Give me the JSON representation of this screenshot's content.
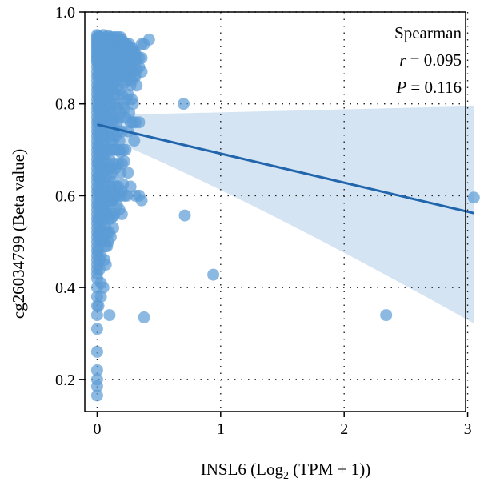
{
  "chart_data": {
    "type": "scatter",
    "title": "",
    "xlabel": "INSL6 (Log",
    "xlabel_sub": "2",
    "xlabel_end": " (TPM + 1))",
    "ylabel": "cg26034799 (Beta value)",
    "xlim": [
      -0.1,
      3.1
    ],
    "ylim": [
      0.13,
      1.0
    ],
    "x_ticks": [
      0,
      1,
      2,
      3
    ],
    "y_ticks": [
      0.2,
      0.4,
      0.6,
      0.8,
      1.0
    ],
    "x_tick_labels": [
      "0",
      "1",
      "2",
      "3"
    ],
    "y_tick_labels": [
      "0.2",
      "0.4",
      "0.6",
      "0.8",
      "1.0"
    ],
    "grid": true,
    "annotation": {
      "method": "Spearman",
      "r_symbol": "r",
      "r_value": " = 0.095",
      "p_symbol": "P",
      "p_value": " = 0.116"
    },
    "point_color": "#5b9bd5",
    "line_color": "#2166ac",
    "band_color": "#c6dbef",
    "regression": {
      "x": [
        0,
        3.05
      ],
      "y": [
        0.755,
        0.562
      ],
      "ci_lower": [
        0.735,
        0.322
      ],
      "ci_upper": [
        0.775,
        0.795
      ]
    },
    "points": [
      [
        0.0,
        0.95
      ],
      [
        0.0,
        0.945
      ],
      [
        0.0,
        0.94
      ],
      [
        0.0,
        0.935
      ],
      [
        0.0,
        0.93
      ],
      [
        0.0,
        0.925
      ],
      [
        0.0,
        0.92
      ],
      [
        0.0,
        0.915
      ],
      [
        0.0,
        0.91
      ],
      [
        0.0,
        0.905
      ],
      [
        0.0,
        0.9
      ],
      [
        0.0,
        0.895
      ],
      [
        0.0,
        0.89
      ],
      [
        0.0,
        0.88
      ],
      [
        0.0,
        0.87
      ],
      [
        0.0,
        0.86
      ],
      [
        0.0,
        0.85
      ],
      [
        0.0,
        0.84
      ],
      [
        0.0,
        0.83
      ],
      [
        0.0,
        0.82
      ],
      [
        0.0,
        0.81
      ],
      [
        0.0,
        0.8
      ],
      [
        0.0,
        0.79
      ],
      [
        0.0,
        0.78
      ],
      [
        0.0,
        0.77
      ],
      [
        0.0,
        0.76
      ],
      [
        0.0,
        0.75
      ],
      [
        0.0,
        0.74
      ],
      [
        0.0,
        0.73
      ],
      [
        0.0,
        0.72
      ],
      [
        0.0,
        0.71
      ],
      [
        0.0,
        0.7
      ],
      [
        0.0,
        0.69
      ],
      [
        0.0,
        0.68
      ],
      [
        0.0,
        0.67
      ],
      [
        0.0,
        0.66
      ],
      [
        0.0,
        0.65
      ],
      [
        0.0,
        0.64
      ],
      [
        0.0,
        0.63
      ],
      [
        0.0,
        0.62
      ],
      [
        0.0,
        0.61
      ],
      [
        0.0,
        0.6
      ],
      [
        0.0,
        0.59
      ],
      [
        0.0,
        0.58
      ],
      [
        0.0,
        0.57
      ],
      [
        0.0,
        0.56
      ],
      [
        0.0,
        0.55
      ],
      [
        0.0,
        0.54
      ],
      [
        0.0,
        0.53
      ],
      [
        0.0,
        0.52
      ],
      [
        0.0,
        0.51
      ],
      [
        0.0,
        0.5
      ],
      [
        0.0,
        0.49
      ],
      [
        0.0,
        0.48
      ],
      [
        0.0,
        0.47
      ],
      [
        0.0,
        0.46
      ],
      [
        0.0,
        0.45
      ],
      [
        0.0,
        0.44
      ],
      [
        0.0,
        0.43
      ],
      [
        0.0,
        0.42
      ],
      [
        0.0,
        0.4
      ],
      [
        0.0,
        0.38
      ],
      [
        0.0,
        0.36
      ],
      [
        0.0,
        0.34
      ],
      [
        0.0,
        0.31
      ],
      [
        0.0,
        0.26
      ],
      [
        0.0,
        0.22
      ],
      [
        0.0,
        0.2
      ],
      [
        0.0,
        0.185
      ],
      [
        0.0,
        0.165
      ],
      [
        0.01,
        0.947
      ],
      [
        0.01,
        0.932
      ],
      [
        0.01,
        0.918
      ],
      [
        0.01,
        0.903
      ],
      [
        0.01,
        0.885
      ],
      [
        0.01,
        0.862
      ],
      [
        0.01,
        0.835
      ],
      [
        0.01,
        0.815
      ],
      [
        0.01,
        0.79
      ],
      [
        0.01,
        0.762
      ],
      [
        0.01,
        0.735
      ],
      [
        0.01,
        0.705
      ],
      [
        0.01,
        0.672
      ],
      [
        0.01,
        0.643
      ],
      [
        0.01,
        0.612
      ],
      [
        0.01,
        0.58
      ],
      [
        0.01,
        0.548
      ],
      [
        0.01,
        0.515
      ],
      [
        0.01,
        0.48
      ],
      [
        0.01,
        0.36
      ],
      [
        0.02,
        0.94
      ],
      [
        0.02,
        0.92
      ],
      [
        0.02,
        0.9
      ],
      [
        0.02,
        0.87
      ],
      [
        0.02,
        0.84
      ],
      [
        0.02,
        0.81
      ],
      [
        0.02,
        0.78
      ],
      [
        0.02,
        0.75
      ],
      [
        0.02,
        0.72
      ],
      [
        0.02,
        0.69
      ],
      [
        0.02,
        0.66
      ],
      [
        0.02,
        0.63
      ],
      [
        0.02,
        0.6
      ],
      [
        0.02,
        0.57
      ],
      [
        0.02,
        0.53
      ],
      [
        0.02,
        0.5
      ],
      [
        0.02,
        0.46
      ],
      [
        0.02,
        0.44
      ],
      [
        0.03,
        0.945
      ],
      [
        0.03,
        0.925
      ],
      [
        0.03,
        0.905
      ],
      [
        0.03,
        0.885
      ],
      [
        0.03,
        0.86
      ],
      [
        0.03,
        0.825
      ],
      [
        0.03,
        0.795
      ],
      [
        0.03,
        0.765
      ],
      [
        0.03,
        0.73
      ],
      [
        0.03,
        0.7
      ],
      [
        0.03,
        0.665
      ],
      [
        0.03,
        0.635
      ],
      [
        0.03,
        0.59
      ],
      [
        0.03,
        0.555
      ],
      [
        0.03,
        0.52
      ],
      [
        0.03,
        0.47
      ],
      [
        0.03,
        0.41
      ],
      [
        0.03,
        0.38
      ],
      [
        0.04,
        0.94
      ],
      [
        0.04,
        0.915
      ],
      [
        0.04,
        0.895
      ],
      [
        0.04,
        0.875
      ],
      [
        0.04,
        0.845
      ],
      [
        0.04,
        0.8
      ],
      [
        0.04,
        0.77
      ],
      [
        0.04,
        0.73
      ],
      [
        0.04,
        0.69
      ],
      [
        0.04,
        0.65
      ],
      [
        0.04,
        0.61
      ],
      [
        0.04,
        0.575
      ],
      [
        0.04,
        0.54
      ],
      [
        0.04,
        0.5
      ],
      [
        0.05,
        0.95
      ],
      [
        0.05,
        0.93
      ],
      [
        0.05,
        0.91
      ],
      [
        0.05,
        0.89
      ],
      [
        0.05,
        0.86
      ],
      [
        0.05,
        0.83
      ],
      [
        0.05,
        0.81
      ],
      [
        0.05,
        0.78
      ],
      [
        0.05,
        0.74
      ],
      [
        0.05,
        0.71
      ],
      [
        0.05,
        0.68
      ],
      [
        0.05,
        0.65
      ],
      [
        0.05,
        0.62
      ],
      [
        0.05,
        0.6
      ],
      [
        0.05,
        0.56
      ],
      [
        0.05,
        0.52
      ],
      [
        0.05,
        0.4
      ],
      [
        0.06,
        0.938
      ],
      [
        0.06,
        0.92
      ],
      [
        0.06,
        0.9
      ],
      [
        0.06,
        0.875
      ],
      [
        0.06,
        0.85
      ],
      [
        0.06,
        0.82
      ],
      [
        0.06,
        0.79
      ],
      [
        0.06,
        0.755
      ],
      [
        0.06,
        0.72
      ],
      [
        0.06,
        0.7
      ],
      [
        0.06,
        0.66
      ],
      [
        0.06,
        0.63
      ],
      [
        0.06,
        0.58
      ],
      [
        0.06,
        0.55
      ],
      [
        0.06,
        0.5
      ],
      [
        0.06,
        0.46
      ],
      [
        0.07,
        0.945
      ],
      [
        0.07,
        0.925
      ],
      [
        0.07,
        0.905
      ],
      [
        0.07,
        0.88
      ],
      [
        0.07,
        0.86
      ],
      [
        0.07,
        0.835
      ],
      [
        0.07,
        0.8
      ],
      [
        0.07,
        0.77
      ],
      [
        0.07,
        0.73
      ],
      [
        0.07,
        0.69
      ],
      [
        0.07,
        0.64
      ],
      [
        0.07,
        0.61
      ],
      [
        0.07,
        0.57
      ],
      [
        0.07,
        0.53
      ],
      [
        0.07,
        0.49
      ],
      [
        0.07,
        0.45
      ],
      [
        0.08,
        0.94
      ],
      [
        0.08,
        0.92
      ],
      [
        0.08,
        0.9
      ],
      [
        0.08,
        0.885
      ],
      [
        0.08,
        0.865
      ],
      [
        0.08,
        0.84
      ],
      [
        0.08,
        0.8
      ],
      [
        0.08,
        0.76
      ],
      [
        0.08,
        0.7
      ],
      [
        0.08,
        0.67
      ],
      [
        0.08,
        0.6
      ],
      [
        0.08,
        0.56
      ],
      [
        0.08,
        0.52
      ],
      [
        0.08,
        0.49
      ],
      [
        0.09,
        0.948
      ],
      [
        0.09,
        0.93
      ],
      [
        0.09,
        0.91
      ],
      [
        0.09,
        0.89
      ],
      [
        0.09,
        0.87
      ],
      [
        0.09,
        0.85
      ],
      [
        0.09,
        0.82
      ],
      [
        0.09,
        0.78
      ],
      [
        0.09,
        0.74
      ],
      [
        0.09,
        0.7
      ],
      [
        0.09,
        0.66
      ],
      [
        0.09,
        0.6
      ],
      [
        0.09,
        0.58
      ],
      [
        0.09,
        0.55
      ],
      [
        0.09,
        0.5
      ],
      [
        0.1,
        0.94
      ],
      [
        0.1,
        0.92
      ],
      [
        0.1,
        0.9
      ],
      [
        0.1,
        0.88
      ],
      [
        0.1,
        0.86
      ],
      [
        0.1,
        0.82
      ],
      [
        0.1,
        0.79
      ],
      [
        0.1,
        0.77
      ],
      [
        0.1,
        0.73
      ],
      [
        0.1,
        0.68
      ],
      [
        0.1,
        0.64
      ],
      [
        0.1,
        0.59
      ],
      [
        0.1,
        0.56
      ],
      [
        0.1,
        0.52
      ],
      [
        0.1,
        0.34
      ],
      [
        0.11,
        0.945
      ],
      [
        0.11,
        0.925
      ],
      [
        0.11,
        0.905
      ],
      [
        0.11,
        0.88
      ],
      [
        0.11,
        0.855
      ],
      [
        0.11,
        0.83
      ],
      [
        0.11,
        0.8
      ],
      [
        0.11,
        0.76
      ],
      [
        0.11,
        0.72
      ],
      [
        0.11,
        0.66
      ],
      [
        0.11,
        0.62
      ],
      [
        0.11,
        0.59
      ],
      [
        0.11,
        0.55
      ],
      [
        0.11,
        0.51
      ],
      [
        0.12,
        0.94
      ],
      [
        0.12,
        0.92
      ],
      [
        0.12,
        0.9
      ],
      [
        0.12,
        0.88
      ],
      [
        0.12,
        0.865
      ],
      [
        0.12,
        0.84
      ],
      [
        0.12,
        0.78
      ],
      [
        0.12,
        0.74
      ],
      [
        0.12,
        0.7
      ],
      [
        0.12,
        0.65
      ],
      [
        0.12,
        0.61
      ],
      [
        0.12,
        0.59
      ],
      [
        0.13,
        0.945
      ],
      [
        0.13,
        0.93
      ],
      [
        0.13,
        0.91
      ],
      [
        0.13,
        0.89
      ],
      [
        0.13,
        0.87
      ],
      [
        0.13,
        0.84
      ],
      [
        0.13,
        0.8
      ],
      [
        0.13,
        0.76
      ],
      [
        0.13,
        0.72
      ],
      [
        0.13,
        0.67
      ],
      [
        0.13,
        0.63
      ],
      [
        0.13,
        0.59
      ],
      [
        0.13,
        0.555
      ],
      [
        0.13,
        0.53
      ],
      [
        0.14,
        0.94
      ],
      [
        0.14,
        0.92
      ],
      [
        0.14,
        0.9
      ],
      [
        0.14,
        0.88
      ],
      [
        0.14,
        0.85
      ],
      [
        0.14,
        0.82
      ],
      [
        0.14,
        0.77
      ],
      [
        0.14,
        0.7
      ],
      [
        0.14,
        0.6
      ],
      [
        0.14,
        0.56
      ],
      [
        0.15,
        0.945
      ],
      [
        0.15,
        0.93
      ],
      [
        0.15,
        0.915
      ],
      [
        0.15,
        0.895
      ],
      [
        0.15,
        0.87
      ],
      [
        0.15,
        0.85
      ],
      [
        0.15,
        0.8
      ],
      [
        0.15,
        0.73
      ],
      [
        0.15,
        0.66
      ],
      [
        0.15,
        0.62
      ],
      [
        0.16,
        0.94
      ],
      [
        0.16,
        0.92
      ],
      [
        0.16,
        0.9
      ],
      [
        0.16,
        0.88
      ],
      [
        0.16,
        0.86
      ],
      [
        0.16,
        0.82
      ],
      [
        0.16,
        0.76
      ],
      [
        0.16,
        0.7
      ],
      [
        0.16,
        0.6
      ],
      [
        0.16,
        0.58
      ],
      [
        0.17,
        0.945
      ],
      [
        0.17,
        0.93
      ],
      [
        0.17,
        0.91
      ],
      [
        0.17,
        0.89
      ],
      [
        0.17,
        0.87
      ],
      [
        0.17,
        0.84
      ],
      [
        0.17,
        0.79
      ],
      [
        0.17,
        0.74
      ],
      [
        0.17,
        0.67
      ],
      [
        0.17,
        0.62
      ],
      [
        0.18,
        0.94
      ],
      [
        0.18,
        0.92
      ],
      [
        0.18,
        0.9
      ],
      [
        0.18,
        0.88
      ],
      [
        0.18,
        0.86
      ],
      [
        0.18,
        0.83
      ],
      [
        0.18,
        0.77
      ],
      [
        0.18,
        0.72
      ],
      [
        0.18,
        0.7
      ],
      [
        0.18,
        0.57
      ],
      [
        0.19,
        0.945
      ],
      [
        0.19,
        0.925
      ],
      [
        0.19,
        0.905
      ],
      [
        0.19,
        0.89
      ],
      [
        0.19,
        0.87
      ],
      [
        0.19,
        0.78
      ],
      [
        0.19,
        0.695
      ],
      [
        0.19,
        0.65
      ],
      [
        0.19,
        0.6
      ],
      [
        0.2,
        0.94
      ],
      [
        0.2,
        0.92
      ],
      [
        0.2,
        0.9
      ],
      [
        0.2,
        0.88
      ],
      [
        0.2,
        0.86
      ],
      [
        0.2,
        0.82
      ],
      [
        0.2,
        0.74
      ],
      [
        0.2,
        0.67
      ],
      [
        0.2,
        0.61
      ],
      [
        0.2,
        0.56
      ],
      [
        0.21,
        0.935
      ],
      [
        0.21,
        0.915
      ],
      [
        0.21,
        0.895
      ],
      [
        0.21,
        0.875
      ],
      [
        0.21,
        0.8
      ],
      [
        0.21,
        0.7
      ],
      [
        0.21,
        0.625
      ],
      [
        0.22,
        0.93
      ],
      [
        0.22,
        0.91
      ],
      [
        0.22,
        0.89
      ],
      [
        0.22,
        0.87
      ],
      [
        0.22,
        0.845
      ],
      [
        0.22,
        0.79
      ],
      [
        0.22,
        0.675
      ],
      [
        0.22,
        0.6
      ],
      [
        0.23,
        0.925
      ],
      [
        0.23,
        0.905
      ],
      [
        0.23,
        0.885
      ],
      [
        0.23,
        0.86
      ],
      [
        0.23,
        0.77
      ],
      [
        0.23,
        0.7
      ],
      [
        0.24,
        0.93
      ],
      [
        0.24,
        0.91
      ],
      [
        0.24,
        0.89
      ],
      [
        0.24,
        0.87
      ],
      [
        0.24,
        0.85
      ],
      [
        0.24,
        0.81
      ],
      [
        0.24,
        0.6
      ],
      [
        0.25,
        0.925
      ],
      [
        0.25,
        0.905
      ],
      [
        0.25,
        0.885
      ],
      [
        0.25,
        0.86
      ],
      [
        0.25,
        0.82
      ],
      [
        0.25,
        0.74
      ],
      [
        0.25,
        0.65
      ],
      [
        0.26,
        0.93
      ],
      [
        0.26,
        0.91
      ],
      [
        0.26,
        0.89
      ],
      [
        0.26,
        0.87
      ],
      [
        0.26,
        0.78
      ],
      [
        0.27,
        0.92
      ],
      [
        0.27,
        0.9
      ],
      [
        0.27,
        0.88
      ],
      [
        0.27,
        0.84
      ],
      [
        0.27,
        0.76
      ],
      [
        0.27,
        0.62
      ],
      [
        0.28,
        0.915
      ],
      [
        0.28,
        0.895
      ],
      [
        0.28,
        0.875
      ],
      [
        0.28,
        0.85
      ],
      [
        0.28,
        0.81
      ],
      [
        0.29,
        0.92
      ],
      [
        0.29,
        0.9
      ],
      [
        0.29,
        0.87
      ],
      [
        0.29,
        0.8
      ],
      [
        0.29,
        0.76
      ],
      [
        0.3,
        0.915
      ],
      [
        0.3,
        0.895
      ],
      [
        0.3,
        0.86
      ],
      [
        0.3,
        0.72
      ],
      [
        0.31,
        0.91
      ],
      [
        0.31,
        0.89
      ],
      [
        0.31,
        0.86
      ],
      [
        0.31,
        0.76
      ],
      [
        0.31,
        0.6
      ],
      [
        0.32,
        0.9
      ],
      [
        0.32,
        0.875
      ],
      [
        0.32,
        0.84
      ],
      [
        0.34,
        0.9
      ],
      [
        0.34,
        0.88
      ],
      [
        0.34,
        0.76
      ],
      [
        0.34,
        0.6
      ],
      [
        0.36,
        0.93
      ],
      [
        0.36,
        0.9
      ],
      [
        0.36,
        0.87
      ],
      [
        0.36,
        0.59
      ],
      [
        0.38,
        0.93
      ],
      [
        0.38,
        0.335
      ],
      [
        0.42,
        0.94
      ],
      [
        0.7,
        0.8
      ],
      [
        0.71,
        0.557
      ],
      [
        0.94,
        0.428
      ],
      [
        2.34,
        0.34
      ],
      [
        3.05,
        0.596
      ]
    ]
  }
}
